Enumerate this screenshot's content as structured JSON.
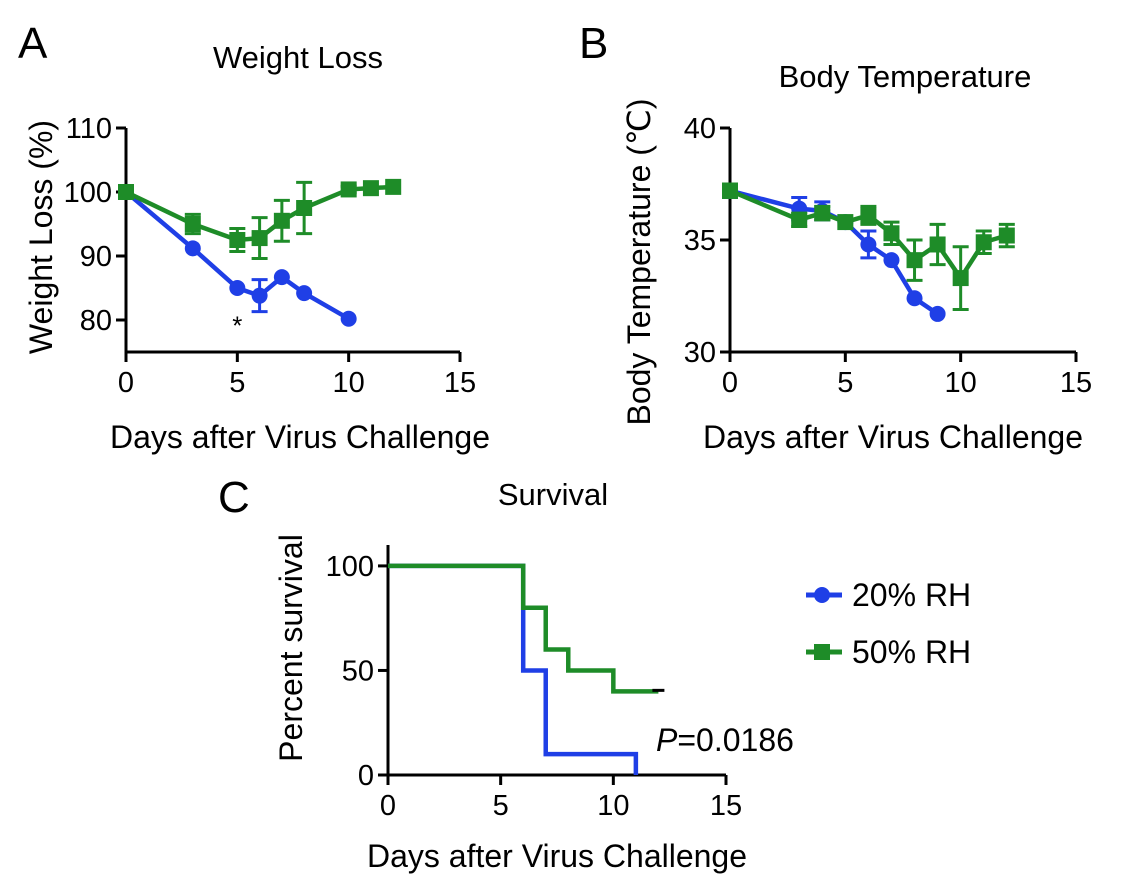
{
  "chart_data": [
    {
      "panel": "A",
      "type": "line",
      "title": "Weight Loss",
      "xlabel": "Days after Virus Challenge",
      "ylabel": "Weight Loss (%)",
      "xlim": [
        0,
        15
      ],
      "ylim": [
        75,
        110
      ],
      "xticks": [
        0,
        5,
        10,
        15
      ],
      "yticks": [
        80,
        90,
        100,
        110
      ],
      "annotation": "*",
      "annotation_x": 5,
      "annotation_y": 79,
      "series": [
        {
          "name": "20% RH",
          "color": "#1f3fe6",
          "marker": "circle",
          "x": [
            0,
            3,
            5,
            6,
            7,
            8,
            10
          ],
          "y": [
            100,
            91.2,
            85,
            83.8,
            86.7,
            84.2,
            80.2
          ],
          "err": [
            0,
            0,
            0,
            2.5,
            0,
            0,
            0
          ]
        },
        {
          "name": "50% RH",
          "color": "#1e8c28",
          "marker": "square",
          "x": [
            0,
            3,
            5,
            6,
            7,
            8,
            10,
            11,
            12
          ],
          "y": [
            100,
            95,
            92.5,
            92.8,
            95.5,
            97.5,
            100.4,
            100.6,
            100.8
          ],
          "err": [
            0,
            1.5,
            1.8,
            3.2,
            3.2,
            4,
            0.5,
            0,
            0
          ]
        }
      ]
    },
    {
      "panel": "B",
      "type": "line",
      "title": "Body Temperature",
      "xlabel": "Days after Virus Challenge",
      "ylabel": "Body Temperature (℃)",
      "xlim": [
        0,
        15
      ],
      "ylim": [
        30,
        40
      ],
      "xticks": [
        0,
        5,
        10,
        15
      ],
      "yticks": [
        30,
        35,
        40
      ],
      "series": [
        {
          "name": "20% RH",
          "color": "#1f3fe6",
          "marker": "circle",
          "x": [
            0,
            3,
            4,
            5,
            6,
            7,
            8,
            9
          ],
          "y": [
            37.2,
            36.4,
            36.3,
            35.8,
            34.8,
            34.1,
            32.4,
            31.7
          ],
          "err": [
            0.3,
            0.5,
            0.4,
            0,
            0.6,
            0,
            0,
            0
          ]
        },
        {
          "name": "50% RH",
          "color": "#1e8c28",
          "marker": "square",
          "x": [
            0,
            3,
            4,
            5,
            6,
            7,
            8,
            9,
            10,
            11,
            12
          ],
          "y": [
            37.2,
            35.9,
            36.2,
            35.8,
            36.1,
            35.3,
            34.1,
            34.8,
            33.3,
            34.9,
            35.2
          ],
          "err": [
            0.3,
            0.3,
            0.3,
            0,
            0.4,
            0.5,
            0.9,
            0.9,
            1.4,
            0.5,
            0.5
          ]
        }
      ]
    },
    {
      "panel": "C",
      "type": "line",
      "title": "Survival",
      "xlabel": "Days after Virus Challenge",
      "ylabel": "Percent survival",
      "xlim": [
        0,
        15
      ],
      "ylim": [
        0,
        110
      ],
      "xticks": [
        0,
        5,
        10,
        15
      ],
      "yticks": [
        0,
        50,
        100
      ],
      "annotation_prefix": "P",
      "annotation_value": "=0.0186",
      "legend_position": "right",
      "series": [
        {
          "name": "20% RH",
          "color": "#1f3fe6",
          "marker": "circle",
          "x": [
            0,
            6,
            6,
            7,
            7,
            11,
            11
          ],
          "y": [
            100,
            100,
            50,
            50,
            10,
            10,
            0
          ]
        },
        {
          "name": "50% RH",
          "color": "#1e8c28",
          "marker": "square",
          "x": [
            0,
            6,
            6,
            7,
            7,
            8,
            8,
            10,
            10,
            12
          ],
          "y": [
            100,
            100,
            80,
            80,
            60,
            60,
            50,
            50,
            40,
            40
          ],
          "censor_x": 12,
          "censor_y": 40
        }
      ]
    }
  ]
}
